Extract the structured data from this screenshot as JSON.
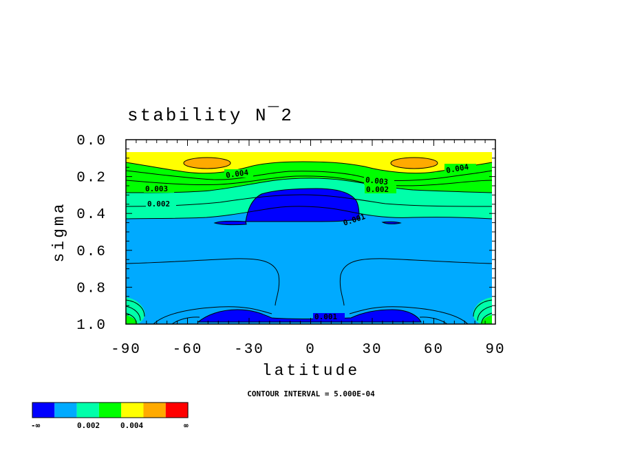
{
  "chart_data": {
    "type": "contour",
    "title": "stability N¯2",
    "xlabel": "latitude",
    "ylabel": "sigma",
    "xlim": [
      -90,
      90
    ],
    "ylim": [
      0.0,
      1.0
    ],
    "y_inverted": true,
    "x_ticks": [
      "-90",
      "-60",
      "-30",
      "0",
      "30",
      "60",
      "90"
    ],
    "y_ticks": [
      "0.0",
      "0.2",
      "0.4",
      "0.6",
      "0.8",
      "1.0"
    ],
    "contour_note": "CONTOUR INTERVAL = 5.000E-04",
    "contour_interval": 0.0005,
    "contour_labels": [
      "0.004",
      "0.003",
      "0.002",
      "0.003",
      "0.002",
      "0.004",
      "0.001",
      "0.001"
    ],
    "colorbar": {
      "colors": [
        "#0000ff",
        "#00aaff",
        "#00ffaa",
        "#00ff00",
        "#ffff00",
        "#ffaa00",
        "#ff0000"
      ],
      "labels": [
        "-∞",
        "0.002",
        "0.004",
        "∞"
      ]
    }
  }
}
